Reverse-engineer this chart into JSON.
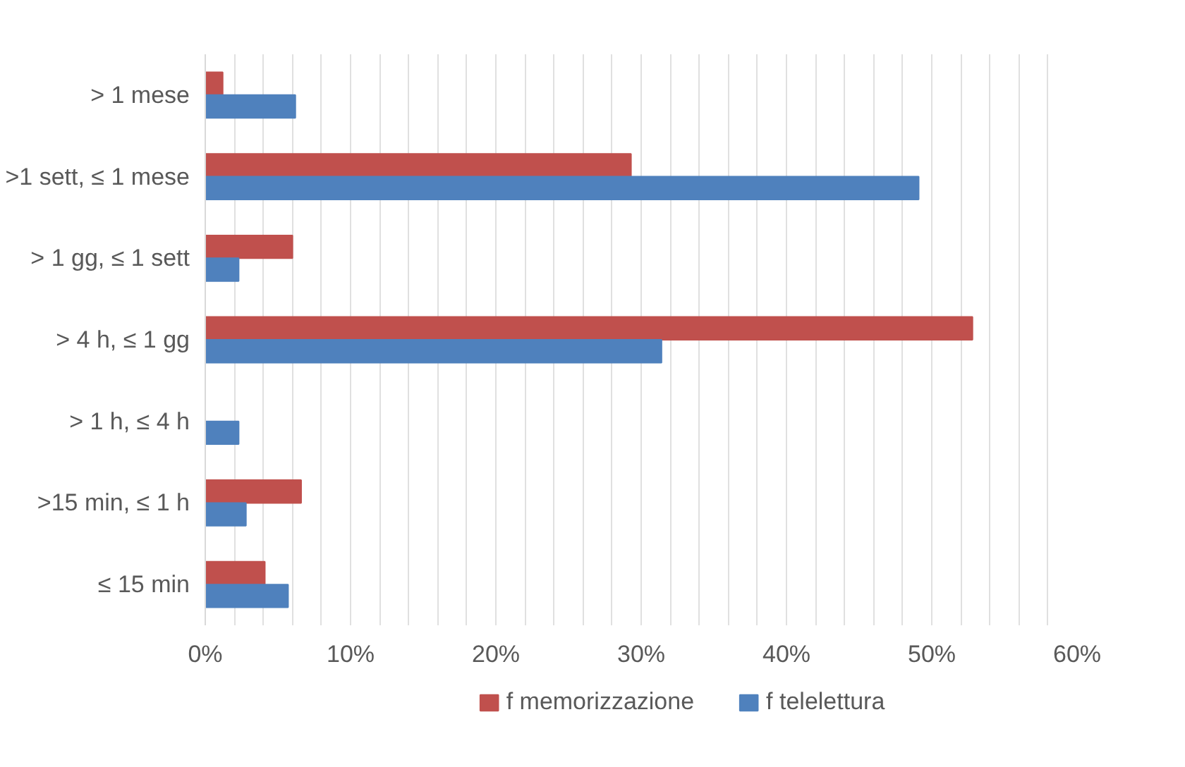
{
  "chart_data": {
    "type": "bar",
    "orientation": "horizontal",
    "categories": [
      "> 1 mese",
      ">1 sett, ≤ 1 mese",
      "> 1 gg, ≤ 1 sett",
      "> 4 h, ≤ 1 gg",
      "> 1 h, ≤ 4 h",
      ">15 min, ≤ 1 h",
      "≤ 15 min"
    ],
    "series": [
      {
        "name": "f memorizzazione",
        "color": "#c0504d",
        "values": [
          1.2,
          29.3,
          6.0,
          52.8,
          0,
          6.6,
          4.1
        ]
      },
      {
        "name": "f telelettura",
        "color": "#4f81bd",
        "values": [
          6.2,
          49.1,
          2.3,
          31.4,
          2.3,
          2.8,
          5.7
        ]
      }
    ],
    "xlim": [
      0,
      60
    ],
    "xticks": [
      {
        "value": 0,
        "label": "0%"
      },
      {
        "value": 2,
        "label": null
      },
      {
        "value": 4,
        "label": null
      },
      {
        "value": 6,
        "label": null
      },
      {
        "value": 8,
        "label": null
      },
      {
        "value": 10,
        "label": "10%"
      },
      {
        "value": 12,
        "label": null
      },
      {
        "value": 14,
        "label": null
      },
      {
        "value": 16,
        "label": null
      },
      {
        "value": 18,
        "label": null
      },
      {
        "value": 20,
        "label": "20%"
      },
      {
        "value": 22,
        "label": null
      },
      {
        "value": 24,
        "label": null
      },
      {
        "value": 26,
        "label": null
      },
      {
        "value": 28,
        "label": null
      },
      {
        "value": 30,
        "label": "30%"
      },
      {
        "value": 32,
        "label": null
      },
      {
        "value": 34,
        "label": null
      },
      {
        "value": 36,
        "label": null
      },
      {
        "value": 38,
        "label": null
      },
      {
        "value": 40,
        "label": "40%"
      },
      {
        "value": 42,
        "label": null
      },
      {
        "value": 44,
        "label": null
      },
      {
        "value": 46,
        "label": null
      },
      {
        "value": 48,
        "label": null
      },
      {
        "value": 50,
        "label": "50%"
      },
      {
        "value": 52,
        "label": null
      },
      {
        "value": 54,
        "label": null
      },
      {
        "value": 56,
        "label": null
      },
      {
        "value": 58,
        "label": null
      },
      {
        "value": 60,
        "label": "60%"
      }
    ],
    "grid": "x",
    "legend": "bottom"
  }
}
